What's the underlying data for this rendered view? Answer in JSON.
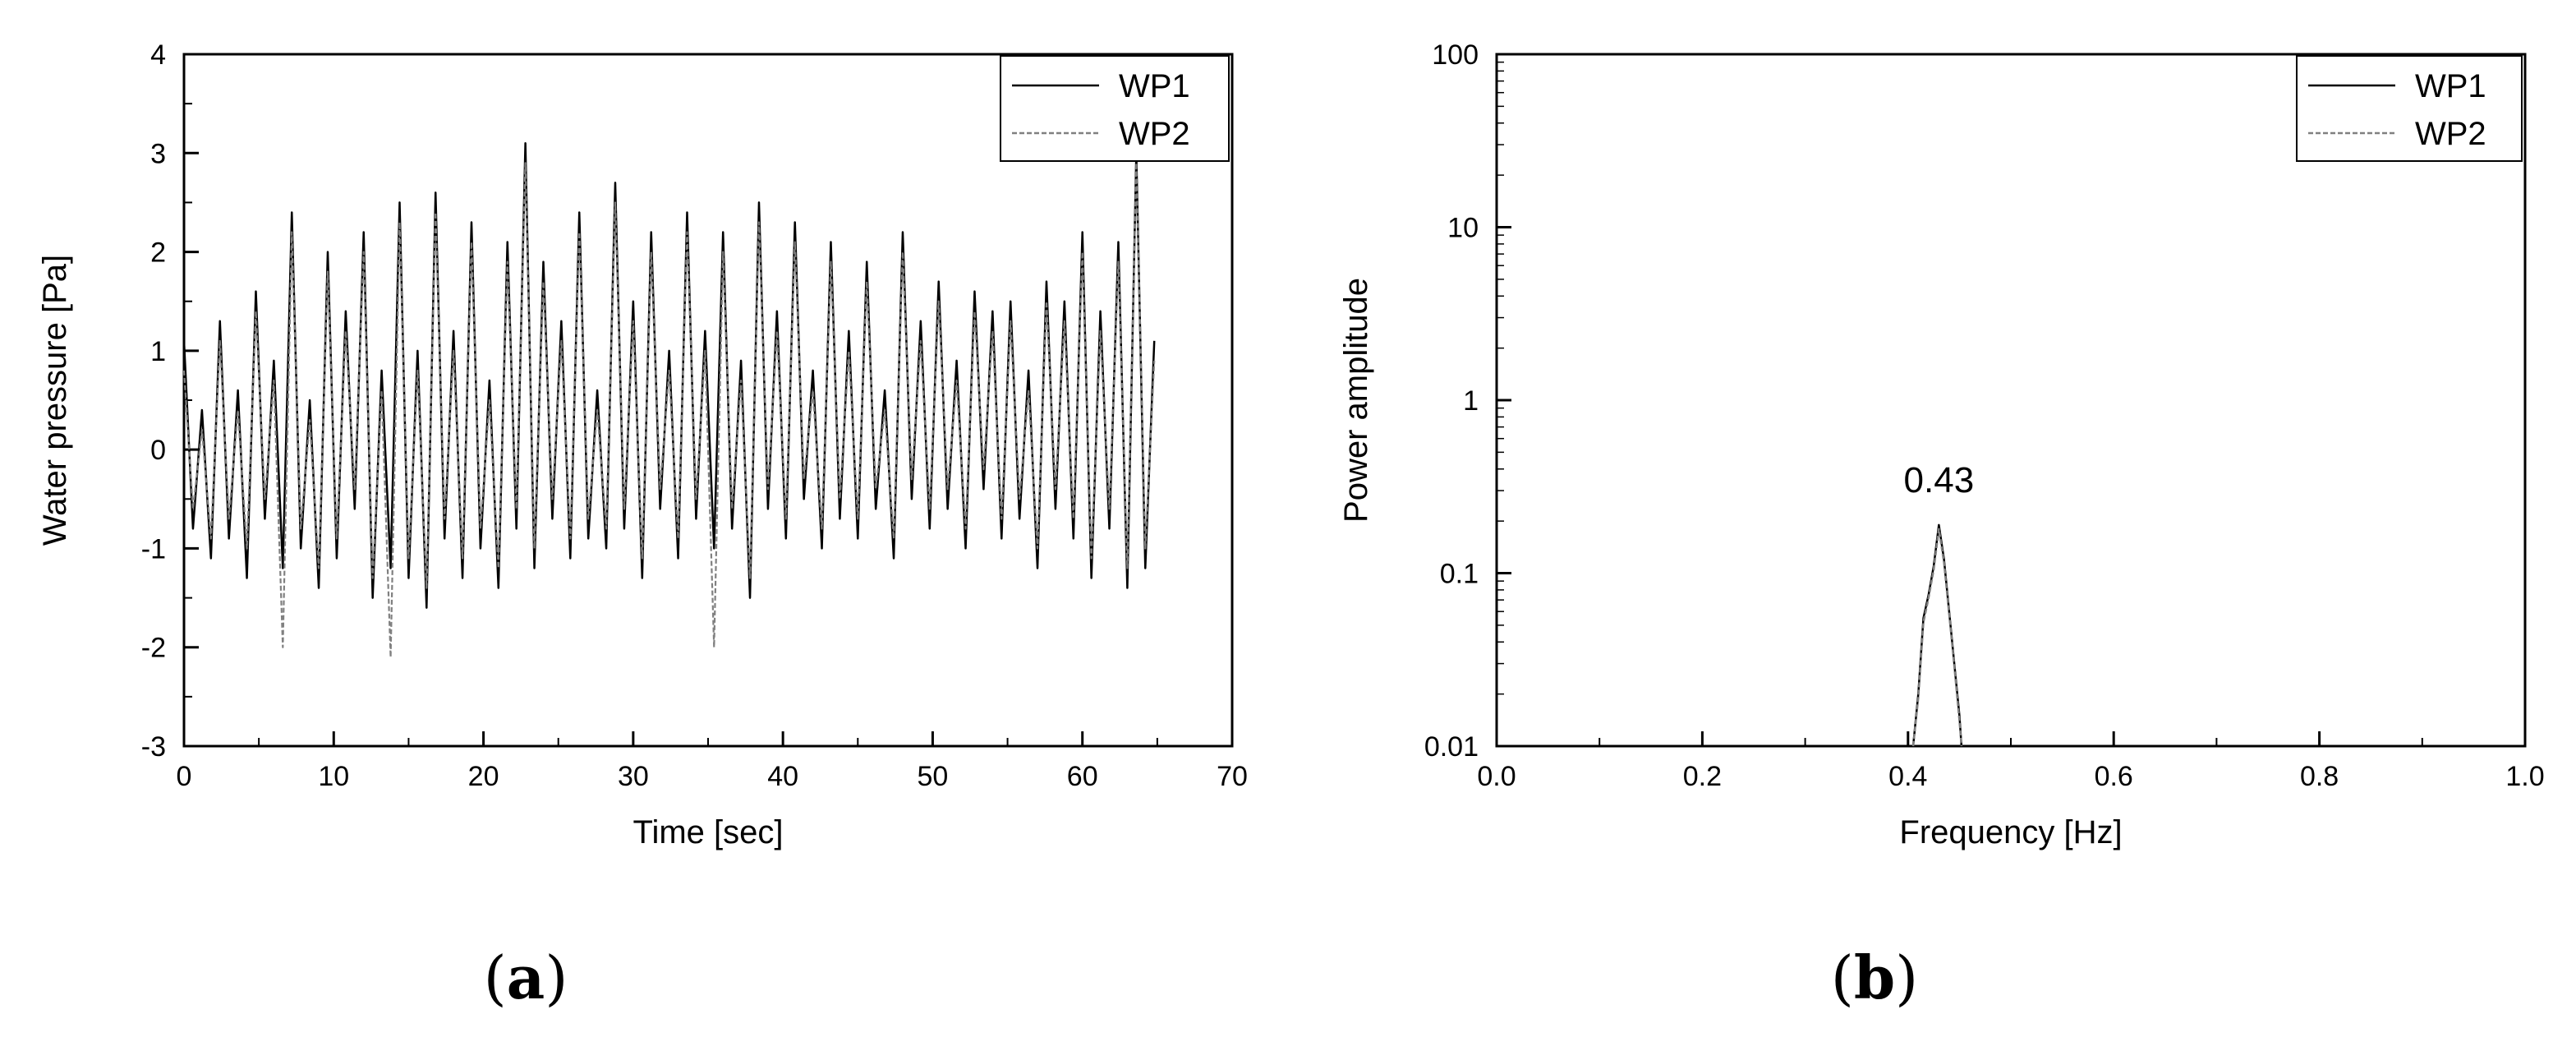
{
  "panels": [
    {
      "label_open": "(",
      "label_letter": "a",
      "label_close": ")"
    },
    {
      "label_open": "(",
      "label_letter": "b",
      "label_close": ")"
    }
  ],
  "chart_data": [
    {
      "type": "line",
      "xlabel": "Time [sec]",
      "ylabel": "Water pressure [Pa]",
      "xlim": [
        0,
        70
      ],
      "ylim": [
        -3,
        4
      ],
      "xticks": [
        0,
        10,
        20,
        30,
        40,
        50,
        60,
        70
      ],
      "yticks": [
        -3,
        -2,
        -1,
        0,
        1,
        2,
        3,
        4
      ],
      "xscale": "linear",
      "yscale": "linear",
      "grid": false,
      "legend_position": "top-right",
      "series": [
        {
          "name": "WP1",
          "color": "#000000",
          "style": "solid",
          "x": [
            0,
            0.6,
            1.2,
            1.8,
            2.4,
            3.0,
            3.6,
            4.2,
            4.8,
            5.4,
            6.0,
            6.6,
            7.2,
            7.8,
            8.4,
            9.0,
            9.6,
            10.2,
            10.8,
            11.4,
            12.0,
            12.6,
            13.2,
            13.8,
            14.4,
            15.0,
            15.6,
            16.2,
            16.8,
            17.4,
            18.0,
            18.6,
            19.2,
            19.8,
            20.4,
            21.0,
            21.6,
            22.2,
            22.8,
            23.4,
            24.0,
            24.6,
            25.2,
            25.8,
            26.4,
            27.0,
            27.6,
            28.2,
            28.8,
            29.4,
            30.0,
            30.6,
            31.2,
            31.8,
            32.4,
            33.0,
            33.6,
            34.2,
            34.8,
            35.4,
            36.0,
            36.6,
            37.2,
            37.8,
            38.4,
            39.0,
            39.6,
            40.2,
            40.8,
            41.4,
            42.0,
            42.6,
            43.2,
            43.8,
            44.4,
            45.0,
            45.6,
            46.2,
            46.8,
            47.4,
            48.0,
            48.6,
            49.2,
            49.8,
            50.4,
            51.0,
            51.6,
            52.2,
            52.8,
            53.4,
            54.0,
            54.6,
            55.2,
            55.8,
            56.4,
            57.0,
            57.6,
            58.2,
            58.8,
            59.4,
            60.0,
            60.6,
            61.2,
            61.8,
            62.4,
            63.0,
            63.6,
            64.2,
            64.8
          ],
          "y": [
            1.1,
            -0.8,
            0.4,
            -1.1,
            1.3,
            -0.9,
            0.6,
            -1.3,
            1.6,
            -0.7,
            0.9,
            -1.2,
            2.4,
            -1.0,
            0.5,
            -1.4,
            2.0,
            -1.1,
            1.4,
            -0.6,
            2.2,
            -1.5,
            0.8,
            -1.2,
            2.5,
            -1.3,
            1.0,
            -1.6,
            2.6,
            -0.9,
            1.2,
            -1.3,
            2.3,
            -1.0,
            0.7,
            -1.4,
            2.1,
            -0.8,
            3.1,
            -1.2,
            1.9,
            -0.7,
            1.3,
            -1.1,
            2.4,
            -0.9,
            0.6,
            -1.0,
            2.7,
            -0.8,
            1.5,
            -1.3,
            2.2,
            -0.6,
            1.0,
            -1.1,
            2.4,
            -0.7,
            1.2,
            -1.0,
            2.2,
            -0.8,
            0.9,
            -1.5,
            2.5,
            -0.6,
            1.4,
            -0.9,
            2.3,
            -0.5,
            0.8,
            -1.0,
            2.1,
            -0.7,
            1.2,
            -0.9,
            1.9,
            -0.6,
            0.6,
            -1.1,
            2.2,
            -0.5,
            1.3,
            -0.8,
            1.7,
            -0.6,
            0.9,
            -1.0,
            1.6,
            -0.4,
            1.4,
            -0.9,
            1.5,
            -0.7,
            0.8,
            -1.2,
            1.7,
            -0.6,
            1.5,
            -0.9,
            2.2,
            -1.3,
            1.4,
            -0.8,
            2.1,
            -1.4,
            3.0,
            -1.2,
            1.1
          ]
        },
        {
          "name": "WP2",
          "color": "#808080",
          "style": "dashed",
          "x": [
            0,
            0.6,
            1.2,
            1.8,
            2.4,
            3.0,
            3.6,
            4.2,
            4.8,
            5.4,
            6.0,
            6.6,
            7.2,
            7.8,
            8.4,
            9.0,
            9.6,
            10.2,
            10.8,
            11.4,
            12.0,
            12.6,
            13.2,
            13.8,
            14.4,
            15.0,
            15.6,
            16.2,
            16.8,
            17.4,
            18.0,
            18.6,
            19.2,
            19.8,
            20.4,
            21.0,
            21.6,
            22.2,
            22.8,
            23.4,
            24.0,
            24.6,
            25.2,
            25.8,
            26.4,
            27.0,
            27.6,
            28.2,
            28.8,
            29.4,
            30.0,
            30.6,
            31.2,
            31.8,
            32.4,
            33.0,
            33.6,
            34.2,
            34.8,
            35.4,
            36.0,
            36.6,
            37.2,
            37.8,
            38.4,
            39.0,
            39.6,
            40.2,
            40.8,
            41.4,
            42.0,
            42.6,
            43.2,
            43.8,
            44.4,
            45.0,
            45.6,
            46.2,
            46.8,
            47.4,
            48.0,
            48.6,
            49.2,
            49.8,
            50.4,
            51.0,
            51.6,
            52.2,
            52.8,
            53.4,
            54.0,
            54.6,
            55.2,
            55.8,
            56.4,
            57.0,
            57.6,
            58.2,
            58.8,
            59.4,
            60.0,
            60.6,
            61.2,
            61.8,
            62.4,
            63.0,
            63.6,
            64.2,
            64.8
          ],
          "y": [
            0.8,
            -0.6,
            0.2,
            -0.9,
            1.1,
            -0.7,
            0.4,
            -1.0,
            1.4,
            -0.5,
            0.7,
            -2.0,
            2.2,
            -0.8,
            0.3,
            -1.2,
            1.8,
            -0.9,
            1.2,
            -0.4,
            2.0,
            -1.3,
            0.6,
            -2.1,
            2.3,
            -1.1,
            0.8,
            -1.4,
            2.4,
            -0.7,
            1.0,
            -1.1,
            2.1,
            -0.8,
            0.5,
            -1.2,
            1.9,
            -0.6,
            2.9,
            -1.0,
            1.7,
            -0.5,
            1.1,
            -0.9,
            2.2,
            -0.7,
            0.4,
            -0.8,
            2.5,
            -0.6,
            1.3,
            -1.1,
            2.0,
            -0.4,
            0.8,
            -0.9,
            2.2,
            -0.5,
            1.0,
            -2.0,
            2.0,
            -0.6,
            0.7,
            -1.3,
            2.3,
            -0.4,
            1.2,
            -0.7,
            2.1,
            -0.3,
            0.6,
            -0.8,
            1.9,
            -0.5,
            1.0,
            -0.7,
            1.7,
            -0.4,
            0.4,
            -0.9,
            2.0,
            -0.3,
            1.1,
            -0.6,
            1.5,
            -0.4,
            0.7,
            -0.8,
            1.4,
            -0.2,
            1.2,
            -0.7,
            1.3,
            -0.5,
            0.6,
            -1.0,
            1.5,
            -0.4,
            1.3,
            -0.7,
            2.0,
            -1.1,
            1.2,
            -0.6,
            1.9,
            -1.2,
            2.9,
            -1.0,
            0.9
          ]
        }
      ]
    },
    {
      "type": "line",
      "xlabel": "Frequency [Hz]",
      "ylabel": "Power amplitude",
      "xlim": [
        0.0,
        1.0
      ],
      "ylim": [
        0.01,
        100
      ],
      "xticks": [
        "0.0",
        "0.2",
        "0.4",
        "0.6",
        "0.8",
        "1.0"
      ],
      "yticks": [
        "0.01",
        "0.1",
        "1",
        "10",
        "100"
      ],
      "xscale": "linear",
      "yscale": "log",
      "grid": false,
      "legend_position": "top-right",
      "annotations": [
        {
          "text": "0.43",
          "x": 0.43,
          "y": 0.35
        }
      ],
      "series": [
        {
          "name": "WP1",
          "color": "#000000",
          "style": "solid",
          "x": [
            0.405,
            0.41,
            0.415,
            0.42,
            0.425,
            0.43,
            0.435,
            0.44,
            0.445,
            0.45,
            0.452
          ],
          "y": [
            0.01,
            0.02,
            0.055,
            0.075,
            0.11,
            0.19,
            0.12,
            0.06,
            0.03,
            0.015,
            0.01
          ]
        },
        {
          "name": "WP2",
          "color": "#808080",
          "style": "dashed",
          "x": [
            0.405,
            0.41,
            0.415,
            0.42,
            0.425,
            0.43,
            0.435,
            0.44,
            0.445,
            0.45,
            0.452
          ],
          "y": [
            0.01,
            0.019,
            0.052,
            0.072,
            0.105,
            0.18,
            0.115,
            0.058,
            0.029,
            0.014,
            0.01
          ]
        }
      ]
    }
  ]
}
